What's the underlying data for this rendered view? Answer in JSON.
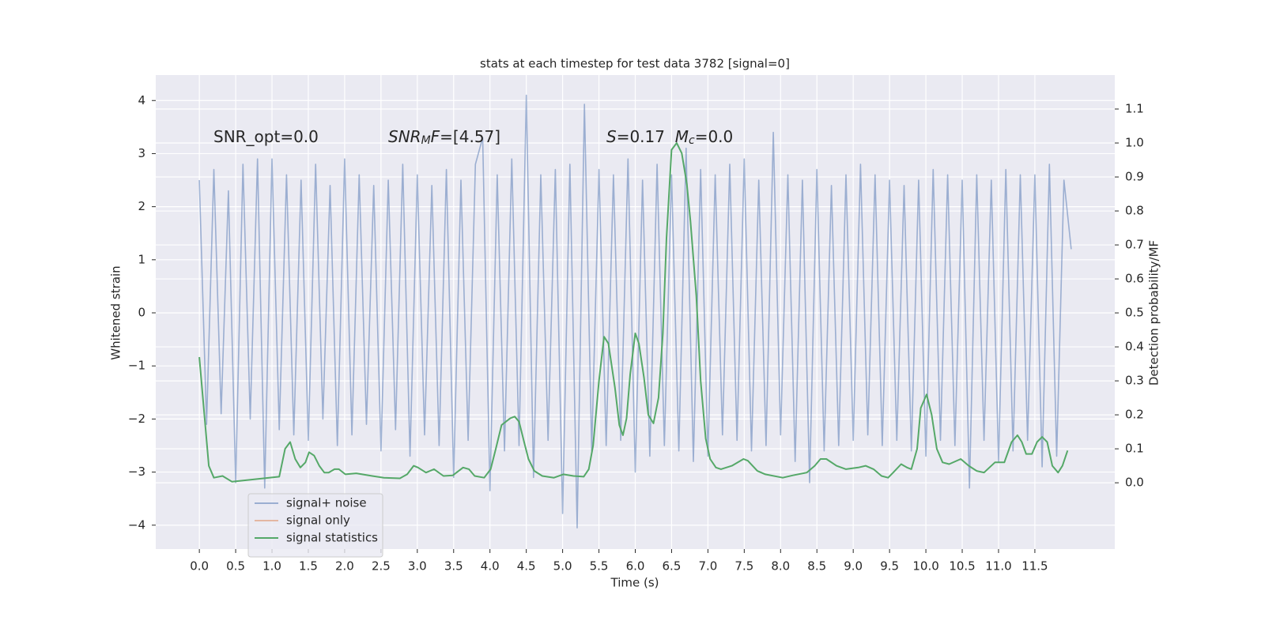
{
  "chart_data": {
    "type": "line",
    "title": "stats at each timestep for test data 3782 [signal=0]",
    "x_label": "Time (s)",
    "y_label": "Whitened strain",
    "y2_label": "Detection probability/MF",
    "grid": true,
    "background": "#eaeaf2",
    "xlim": [
      -0.6,
      12.6
    ],
    "ylim": [
      -4.45,
      4.48
    ],
    "y2lim": [
      -0.195,
      1.2
    ],
    "xticks": [
      {
        "value": 0,
        "label": "0.0"
      },
      {
        "value": 0.5,
        "label": "0.5"
      },
      {
        "value": 1,
        "label": "1.0"
      },
      {
        "value": 1.5,
        "label": "1.5"
      },
      {
        "value": 2,
        "label": "2.0"
      },
      {
        "value": 2.5,
        "label": "2.5"
      },
      {
        "value": 3,
        "label": "3.0"
      },
      {
        "value": 3.5,
        "label": "3.5"
      },
      {
        "value": 4,
        "label": "4.0"
      },
      {
        "value": 4.5,
        "label": "4.5"
      },
      {
        "value": 5,
        "label": "5.0"
      },
      {
        "value": 5.5,
        "label": "5.5"
      },
      {
        "value": 6,
        "label": "6.0"
      },
      {
        "value": 6.5,
        "label": "6.5"
      },
      {
        "value": 7,
        "label": "7.0"
      },
      {
        "value": 7.5,
        "label": "7.5"
      },
      {
        "value": 8,
        "label": "8.0"
      },
      {
        "value": 8.5,
        "label": "8.5"
      },
      {
        "value": 9,
        "label": "9.0"
      },
      {
        "value": 9.5,
        "label": "9.5"
      },
      {
        "value": 10,
        "label": "10.0"
      },
      {
        "value": 10.5,
        "label": "10.5"
      },
      {
        "value": 11,
        "label": "11.0"
      },
      {
        "value": 11.5,
        "label": "11.5"
      }
    ],
    "yticks": [
      {
        "value": -4,
        "label": "−4"
      },
      {
        "value": -3,
        "label": "−3"
      },
      {
        "value": -2,
        "label": "−2"
      },
      {
        "value": -1,
        "label": "−1"
      },
      0,
      1,
      2,
      3,
      4
    ],
    "y2ticks": [
      {
        "value": 0,
        "label": "0.0"
      },
      {
        "value": 0.1,
        "label": "0.1"
      },
      {
        "value": 0.2,
        "label": "0.2"
      },
      {
        "value": 0.3,
        "label": "0.3"
      },
      {
        "value": 0.4,
        "label": "0.4"
      },
      {
        "value": 0.5,
        "label": "0.5"
      },
      {
        "value": 0.6,
        "label": "0.6"
      },
      {
        "value": 0.7,
        "label": "0.7"
      },
      {
        "value": 0.8,
        "label": "0.8"
      },
      {
        "value": 0.9,
        "label": "0.9"
      },
      {
        "value": 1,
        "label": "1.0"
      },
      {
        "value": 1.1,
        "label": "1.1"
      }
    ],
    "legend_loc": "lower left",
    "annotations": [
      {
        "parts": [
          {
            "text": "SNR_opt=0.0"
          }
        ]
      },
      {
        "parts": [
          {
            "text": "SNR",
            "italic": true
          },
          {
            "text": "M",
            "italic": true,
            "sub": true
          },
          {
            "text": "F",
            "italic": true
          },
          {
            "text": "=[4.57]"
          }
        ]
      },
      {
        "parts": [
          {
            "text": "S",
            "italic": true
          },
          {
            "text": "=0.17  "
          },
          {
            "text": "M",
            "italic": true
          },
          {
            "text": "c",
            "italic": true,
            "sub": true
          },
          {
            "text": "=0.0"
          }
        ]
      }
    ],
    "series": [
      {
        "name": "signal+ noise",
        "color": "#4c72b0",
        "alpha": 0.5,
        "axis": "y",
        "x": [
          0,
          0.1,
          0.2,
          0.3,
          0.4,
          0.5,
          0.6,
          0.7,
          0.8,
          0.9,
          1,
          1.1,
          1.2,
          1.3,
          1.4,
          1.5,
          1.6,
          1.7,
          1.8,
          1.9,
          2,
          2.1,
          2.2,
          2.3,
          2.4,
          2.5,
          2.6,
          2.7,
          2.8,
          2.9,
          3,
          3.1,
          3.2,
          3.3,
          3.4,
          3.5,
          3.6,
          3.7,
          3.8,
          3.9,
          4,
          4.1,
          4.2,
          4.3,
          4.4,
          4.5,
          4.6,
          4.7,
          4.8,
          4.9,
          5,
          5.1,
          5.2,
          5.3,
          5.4,
          5.5,
          5.6,
          5.7,
          5.8,
          5.9,
          6,
          6.1,
          6.2,
          6.3,
          6.4,
          6.5,
          6.6,
          6.7,
          6.8,
          6.9,
          7,
          7.1,
          7.2,
          7.3,
          7.4,
          7.5,
          7.6,
          7.7,
          7.8,
          7.9,
          8,
          8.1,
          8.2,
          8.3,
          8.4,
          8.5,
          8.6,
          8.7,
          8.8,
          8.9,
          9,
          9.1,
          9.2,
          9.3,
          9.4,
          9.5,
          9.6,
          9.7,
          9.8,
          9.9,
          10,
          10.1,
          10.2,
          10.3,
          10.4,
          10.5,
          10.6,
          10.7,
          10.8,
          10.9,
          11,
          11.1,
          11.2,
          11.3,
          11.4,
          11.5,
          11.6,
          11.7,
          11.8,
          11.9,
          12
        ],
        "values": [
          2.5,
          -2.1,
          2.7,
          -1.9,
          2.3,
          -3.2,
          2.8,
          -2.0,
          2.9,
          -3.3,
          2.9,
          -2.2,
          2.6,
          -2.3,
          2.5,
          -2.4,
          2.8,
          -2.0,
          2.4,
          -2.5,
          2.9,
          -2.3,
          2.6,
          -2.1,
          2.4,
          -2.6,
          2.5,
          -2.2,
          2.8,
          -2.7,
          2.6,
          -2.3,
          2.4,
          -2.5,
          2.7,
          -3.1,
          2.5,
          -2.4,
          2.8,
          3.3,
          -3.35,
          2.6,
          -2.6,
          2.9,
          -2.5,
          4.1,
          -3.1,
          2.6,
          -2.4,
          2.7,
          -3.78,
          2.8,
          -4.05,
          3.93,
          -2.6,
          2.7,
          -2.5,
          2.6,
          -2.4,
          2.9,
          -3.0,
          2.5,
          -2.7,
          2.8,
          -2.5,
          2.6,
          -2.6,
          3.1,
          -2.8,
          2.7,
          -2.7,
          2.6,
          -2.3,
          2.8,
          -2.4,
          2.9,
          -2.6,
          2.5,
          -2.5,
          3.4,
          -2.3,
          2.6,
          -2.8,
          2.5,
          -3.2,
          2.7,
          -2.6,
          2.4,
          -2.5,
          2.6,
          -2.4,
          2.8,
          -2.3,
          2.6,
          -2.5,
          2.5,
          -2.4,
          2.4,
          -2.6,
          2.5,
          -2.7,
          2.7,
          -2.4,
          2.6,
          -2.5,
          2.5,
          -3.3,
          2.6,
          -2.4,
          2.5,
          -2.8,
          2.7,
          -2.6,
          2.6,
          -2.4,
          2.6,
          -2.9,
          2.8,
          -2.7,
          2.5,
          1.2
        ]
      },
      {
        "name": "signal only",
        "color": "#dd8452",
        "alpha": 0.5,
        "axis": "y",
        "x": [],
        "values": []
      },
      {
        "name": "signal statistics",
        "color": "#55a868",
        "alpha": 1,
        "axis": "y2",
        "x": [
          0,
          0.13,
          0.2,
          0.32,
          0.45,
          1.1,
          1.18,
          1.25,
          1.32,
          1.39,
          1.46,
          1.51,
          1.58,
          1.65,
          1.72,
          1.78,
          1.86,
          1.92,
          2.01,
          2.16,
          2.38,
          2.54,
          2.76,
          2.86,
          2.95,
          3.01,
          3.12,
          3.23,
          3.36,
          3.49,
          3.63,
          3.71,
          3.79,
          3.92,
          4.01,
          4.08,
          4.16,
          4.28,
          4.34,
          4.4,
          4.47,
          4.53,
          4.61,
          4.72,
          4.88,
          5.01,
          5.15,
          5.29,
          5.36,
          5.42,
          5.5,
          5.57,
          5.63,
          5.72,
          5.78,
          5.83,
          5.88,
          5.93,
          6,
          6.05,
          6.12,
          6.18,
          6.25,
          6.32,
          6.38,
          6.43,
          6.5,
          6.57,
          6.64,
          6.71,
          6.76,
          6.84,
          6.9,
          6.97,
          7.03,
          7.11,
          7.18,
          7.33,
          7.49,
          7.55,
          7.68,
          7.79,
          8.03,
          8.17,
          8.36,
          8.47,
          8.55,
          8.63,
          8.77,
          8.9,
          9.07,
          9.17,
          9.28,
          9.39,
          9.48,
          9.55,
          9.66,
          9.74,
          9.8,
          9.88,
          9.93,
          10.01,
          10.08,
          10.15,
          10.23,
          10.32,
          10.48,
          10.59,
          10.7,
          10.8,
          10.95,
          11.08,
          11.18,
          11.26,
          11.32,
          11.38,
          11.46,
          11.53,
          11.6,
          11.67,
          11.74,
          11.82,
          11.88,
          11.95
        ],
        "values": [
          0.37,
          0.05,
          0.015,
          0.02,
          0.003,
          0.018,
          0.1,
          0.12,
          0.07,
          0.045,
          0.06,
          0.09,
          0.08,
          0.05,
          0.03,
          0.03,
          0.04,
          0.04,
          0.025,
          0.028,
          0.02,
          0.015,
          0.013,
          0.025,
          0.05,
          0.045,
          0.03,
          0.04,
          0.02,
          0.022,
          0.045,
          0.04,
          0.02,
          0.015,
          0.04,
          0.1,
          0.17,
          0.19,
          0.195,
          0.18,
          0.12,
          0.07,
          0.035,
          0.02,
          0.015,
          0.025,
          0.02,
          0.018,
          0.04,
          0.11,
          0.3,
          0.43,
          0.41,
          0.28,
          0.17,
          0.14,
          0.19,
          0.32,
          0.44,
          0.41,
          0.31,
          0.2,
          0.175,
          0.25,
          0.44,
          0.72,
          0.98,
          1.0,
          0.97,
          0.88,
          0.77,
          0.55,
          0.3,
          0.13,
          0.07,
          0.045,
          0.04,
          0.05,
          0.07,
          0.065,
          0.035,
          0.025,
          0.015,
          0.022,
          0.03,
          0.05,
          0.07,
          0.07,
          0.05,
          0.04,
          0.045,
          0.05,
          0.04,
          0.02,
          0.015,
          0.03,
          0.055,
          0.045,
          0.04,
          0.1,
          0.22,
          0.26,
          0.2,
          0.1,
          0.06,
          0.055,
          0.07,
          0.05,
          0.035,
          0.03,
          0.06,
          0.06,
          0.12,
          0.14,
          0.12,
          0.085,
          0.085,
          0.12,
          0.135,
          0.12,
          0.05,
          0.03,
          0.05,
          0.095
        ]
      }
    ]
  }
}
